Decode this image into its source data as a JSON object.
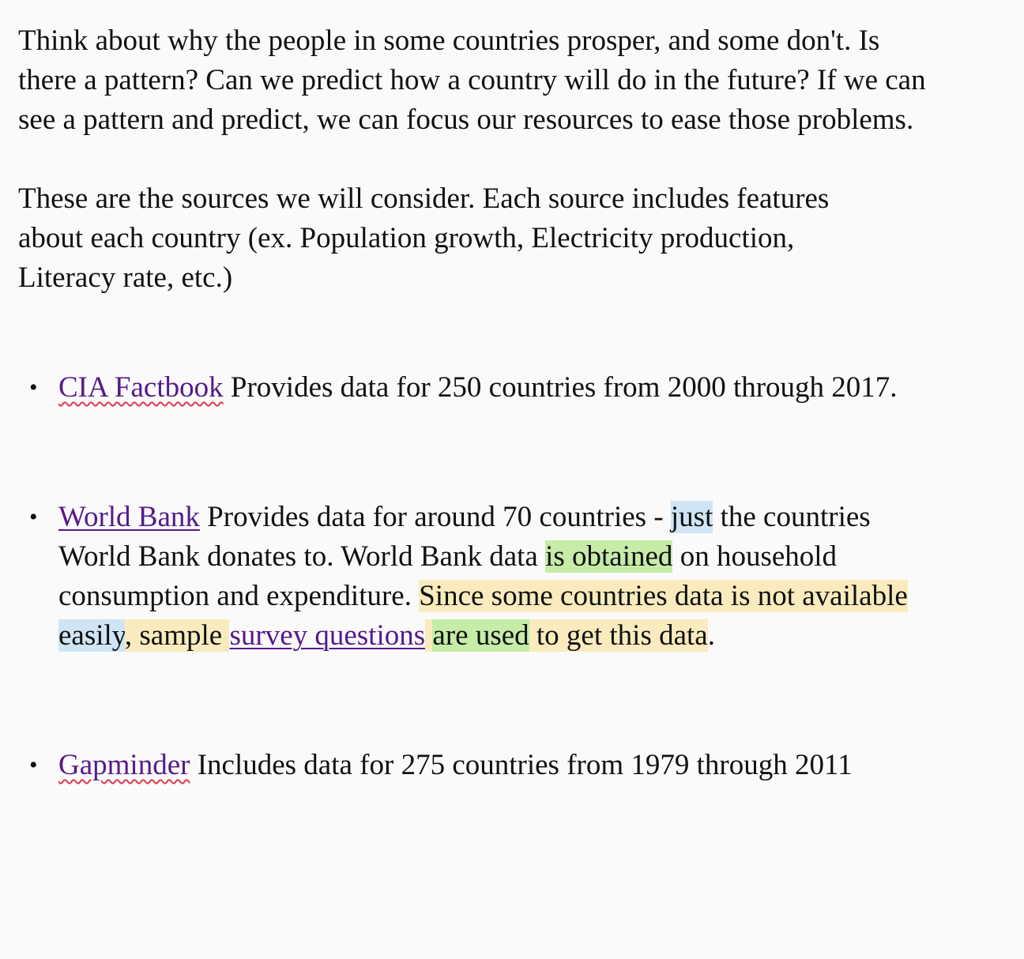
{
  "intro": {
    "text": "Think about why the people in some countries prosper, and some don't.  Is there a pattern?  Can we predict how a country will do in the future?  If we can see a pattern and predict, we can focus our resources to ease those problems."
  },
  "sources_intro": {
    "text": "These are the sources we will consider. Each source includes features about each country (ex. Population growth, Electricity production, Literacy rate, etc.)"
  },
  "sources": {
    "bullet": "•",
    "cia": {
      "link_label": "CIA Factbook",
      "description": " Provides data for 250 countries from 2000 through 2017."
    },
    "worldbank": {
      "link_label": "World Bank",
      "text_1": " Provides data for around 70 countries - ",
      "hl_just": "just",
      "text_2": " the countries World Bank donates to. World Bank data ",
      "hl_is_obtained": "is obtained",
      "text_3": " on household consumption and expenditure. ",
      "hl_since_some": "Since some countries data is not available ",
      "hl_easily": "easily",
      "hl_sample": ", sample ",
      "survey_link": "survey questions",
      "hl_space": " ",
      "hl_are_used": "are used",
      "hl_to_get": " to get this data",
      "text_end": "."
    },
    "gapminder": {
      "link_label": "Gapminder",
      "description": " Includes data for 275 countries from 1979 through 2011"
    }
  },
  "colors": {
    "link": "#551a8b",
    "highlight_blue": "#cfe5f5",
    "highlight_green": "#c6eca8",
    "highlight_yellow": "#f9ebbd",
    "spellcheck_underline": "#e0394f"
  }
}
